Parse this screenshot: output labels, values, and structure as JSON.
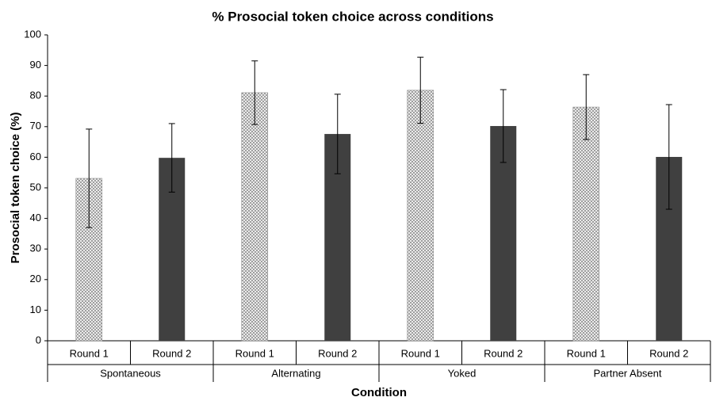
{
  "chart_data": {
    "type": "bar",
    "title": "% Prosocial token choice across conditions",
    "x_label": "Condition",
    "y_label": "Prosocial token choice (%)",
    "categories": [
      "Spontaneous",
      "Alternating",
      "Yoked",
      "Partner Absent"
    ],
    "series": [
      {
        "name": "Round 1",
        "color": "#8c8c8c",
        "pattern": "crosshatch",
        "values": [
          53.1,
          81.1,
          81.9,
          76.4
        ],
        "errors": [
          16.1,
          10.4,
          10.8,
          10.6
        ]
      },
      {
        "name": "Round 2",
        "color": "#404040",
        "values": [
          59.8,
          67.6,
          70.2,
          60.1
        ],
        "errors": [
          11.2,
          13,
          11.9,
          17.1
        ]
      }
    ],
    "ylim": [
      0,
      100
    ],
    "yticks": [
      0,
      10,
      20,
      30,
      40,
      50,
      60,
      70,
      80,
      90,
      100
    ],
    "grid": false
  }
}
